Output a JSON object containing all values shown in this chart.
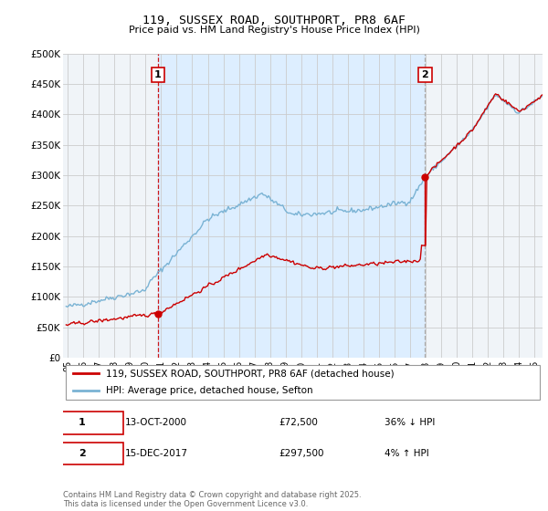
{
  "title1": "119, SUSSEX ROAD, SOUTHPORT, PR8 6AF",
  "title2": "Price paid vs. HM Land Registry's House Price Index (HPI)",
  "ylim": [
    0,
    500000
  ],
  "yticks": [
    0,
    50000,
    100000,
    150000,
    200000,
    250000,
    300000,
    350000,
    400000,
    450000,
    500000
  ],
  "ytick_labels": [
    "£0",
    "£50K",
    "£100K",
    "£150K",
    "£200K",
    "£250K",
    "£300K",
    "£350K",
    "£400K",
    "£450K",
    "£500K"
  ],
  "sale1_x": 2000.79,
  "sale1_y": 72500,
  "sale2_x": 2017.96,
  "sale2_y": 297500,
  "line_color_property": "#cc0000",
  "line_color_hpi": "#7ab3d4",
  "vline1_color": "#cc0000",
  "vline2_color": "#aaaaaa",
  "shade_color": "#ddeeff",
  "background_color": "#f0f4f8",
  "grid_color": "#cccccc",
  "legend_label_property": "119, SUSSEX ROAD, SOUTHPORT, PR8 6AF (detached house)",
  "legend_label_hpi": "HPI: Average price, detached house, Sefton",
  "annotation1_date": "13-OCT-2000",
  "annotation1_price": "£72,500",
  "annotation1_hpi": "36% ↓ HPI",
  "annotation2_date": "15-DEC-2017",
  "annotation2_price": "£297,500",
  "annotation2_hpi": "4% ↑ HPI",
  "copyright_text": "Contains HM Land Registry data © Crown copyright and database right 2025.\nThis data is licensed under the Open Government Licence v3.0.",
  "xmin": 1994.7,
  "xmax": 2025.5
}
